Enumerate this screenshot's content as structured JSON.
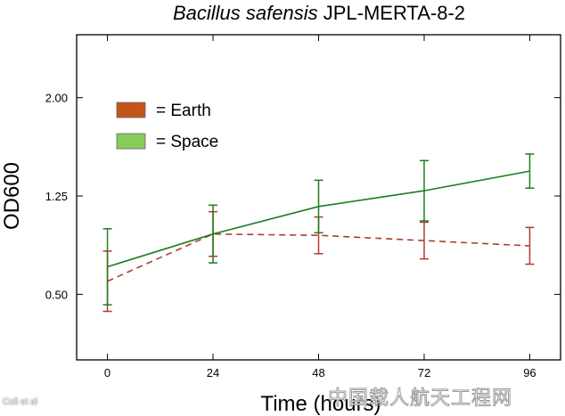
{
  "chart_data": {
    "type": "line",
    "title_italic": "Bacillus safensis",
    "title_rest": " JPL-MERTA-8-2",
    "xlabel": "Time (hours)",
    "ylabel": "OD600",
    "x": [
      0,
      24,
      48,
      72,
      96
    ],
    "x_ticks": [
      "0",
      "24",
      "48",
      "72",
      "96"
    ],
    "y_ticks": [
      "0.50",
      "1.25",
      "2.00"
    ],
    "y_tick_values": [
      0.5,
      1.25,
      2.0
    ],
    "xlim": [
      -7,
      103
    ],
    "ylim": [
      0.0,
      2.48
    ],
    "grid": false,
    "legend_position": "upper-left",
    "series": [
      {
        "name": "= Earth",
        "color": "#b03a2e",
        "legend_color": "#c5541b",
        "line_style": "dashed",
        "values": [
          0.6,
          0.96,
          0.95,
          0.91,
          0.87
        ],
        "errors": [
          0.23,
          0.17,
          0.14,
          0.14,
          0.14
        ]
      },
      {
        "name": "= Space",
        "color": "#1e7d1e",
        "legend_color": "#86cc57",
        "line_style": "solid",
        "values": [
          0.71,
          0.96,
          1.17,
          1.29,
          1.44
        ],
        "errors": [
          0.29,
          0.22,
          0.2,
          0.23,
          0.13
        ]
      }
    ]
  },
  "credit": "Coll et al",
  "watermark": "中国载人航天工程网"
}
